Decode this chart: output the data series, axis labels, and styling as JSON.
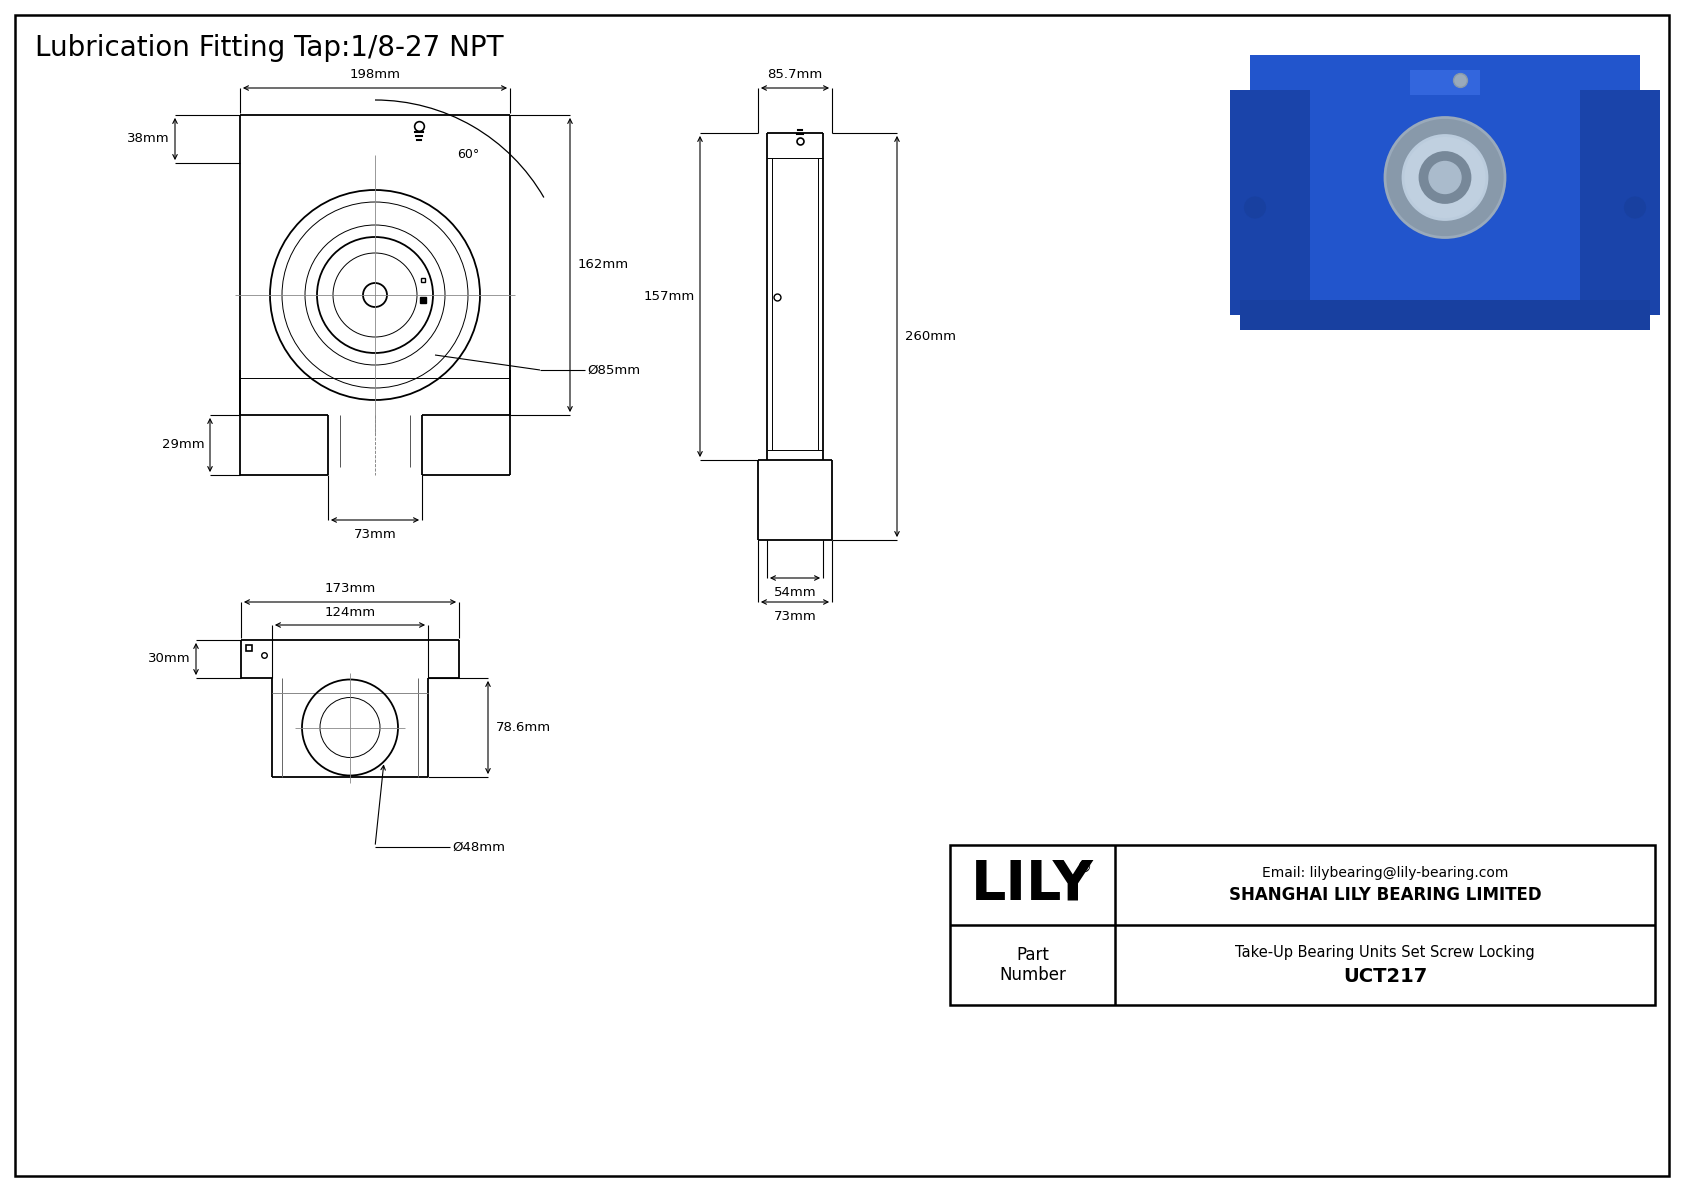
{
  "title": "Lubrication Fitting Tap:1/8-27 NPT",
  "bg_color": "#ffffff",
  "line_color": "#000000",
  "company": "SHANGHAI LILY BEARING LIMITED",
  "email": "Email: lilybearing@lily-bearing.com",
  "part_label": "Part\nNumber",
  "part_number": "UCT217",
  "part_desc": "Take-Up Bearing Units Set Screw Locking",
  "dims": {
    "front_width": "198mm",
    "front_height_right": "162mm",
    "front_bearing_dia": "Ø85mm",
    "front_slot_width": "73mm",
    "front_top_height": "38mm",
    "front_slot_height": "29mm",
    "side_top_width": "85.7mm",
    "side_height_left": "157mm",
    "side_total_height": "260mm",
    "side_base_width1": "54mm",
    "side_base_width2": "73mm",
    "bottom_total_width": "173mm",
    "bottom_inner_width": "124mm",
    "bottom_bore_dia": "Ø48mm",
    "bottom_height": "78.6mm",
    "bottom_slot_height": "30mm",
    "angle": "60°"
  }
}
